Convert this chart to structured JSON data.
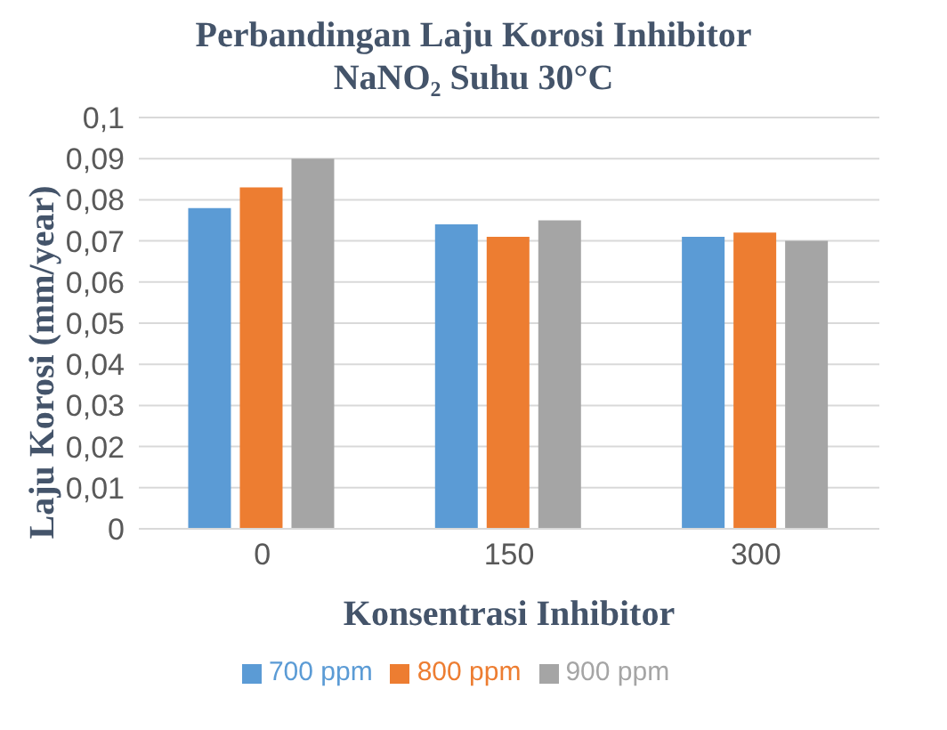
{
  "chart_data": {
    "type": "bar",
    "title": "Perbandingan Laju Korosi Inhibitor NaNO₂ Suhu 30°C",
    "xlabel": "Konsentrasi Inhibitor",
    "ylabel": "Laju Korosi (mm/year)",
    "categories": [
      "0",
      "150",
      "300"
    ],
    "series": [
      {
        "name": "700 ppm",
        "color": "#5b9bd5",
        "values": [
          0.078,
          0.074,
          0.071
        ]
      },
      {
        "name": "800 ppm",
        "color": "#ed7d31",
        "values": [
          0.083,
          0.071,
          0.072
        ]
      },
      {
        "name": "900 ppm",
        "color": "#a5a5a5",
        "values": [
          0.09,
          0.075,
          0.07
        ]
      }
    ],
    "ylim": [
      0,
      0.1
    ],
    "yticks": [
      0,
      {
        "value": 0.01,
        "label": "0,01"
      },
      {
        "value": 0.02,
        "label": "0,02"
      },
      {
        "value": 0.03,
        "label": "0,03"
      },
      {
        "value": 0.04,
        "label": "0,04"
      },
      {
        "value": 0.05,
        "label": "0,05"
      },
      {
        "value": 0.06,
        "label": "0,06"
      },
      {
        "value": 0.07,
        "label": "0,07"
      },
      {
        "value": 0.08,
        "label": "0,08"
      },
      {
        "value": 0.09,
        "label": "0,09"
      },
      {
        "value": 0.1,
        "label": "0,1"
      }
    ],
    "grid": "y",
    "legend": "bottom"
  }
}
